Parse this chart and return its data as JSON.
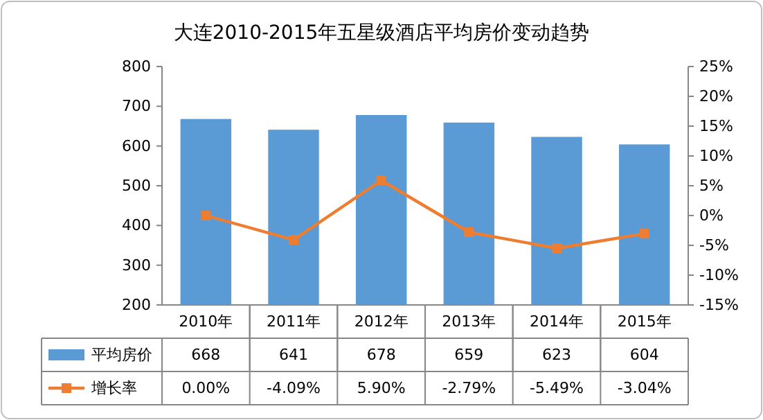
{
  "chart_data": {
    "type": "bar",
    "title": "大连2010-2015年五星级酒店平均房价变动趋势",
    "categories": [
      "2010年",
      "2011年",
      "2012年",
      "2013年",
      "2014年",
      "2015年"
    ],
    "series": [
      {
        "name": "平均房价",
        "color": "#5b9bd5",
        "values": [
          668,
          641,
          678,
          659,
          623,
          604
        ],
        "value_labels": [
          "668",
          "641",
          "678",
          "659",
          "623",
          "604"
        ]
      },
      {
        "name": "增长率",
        "type": "line",
        "axis": "y2",
        "color": "#ed7d31",
        "marker": "square",
        "values": [
          0.0,
          -4.09,
          5.9,
          -2.79,
          -5.49,
          -3.04
        ],
        "value_labels": [
          "0.00%",
          "-4.09%",
          "5.90%",
          "-2.79%",
          "-5.49%",
          "-3.04%"
        ]
      }
    ],
    "ylim": [
      200,
      800
    ],
    "yticks": [
      200,
      300,
      400,
      500,
      600,
      700,
      800
    ],
    "y2lim": [
      -15,
      25
    ],
    "y2ticks": [
      {
        "value": -15,
        "label": "-15%"
      },
      {
        "value": -10,
        "label": "-10%"
      },
      {
        "value": -5,
        "label": "-5%"
      },
      {
        "value": 0,
        "label": "0%"
      },
      {
        "value": 5,
        "label": "5%"
      },
      {
        "value": 10,
        "label": "10%"
      },
      {
        "value": 15,
        "label": "15%"
      },
      {
        "value": 20,
        "label": "20%"
      },
      {
        "value": 25,
        "label": "25%"
      }
    ],
    "legend": "bottom",
    "grid": false
  }
}
